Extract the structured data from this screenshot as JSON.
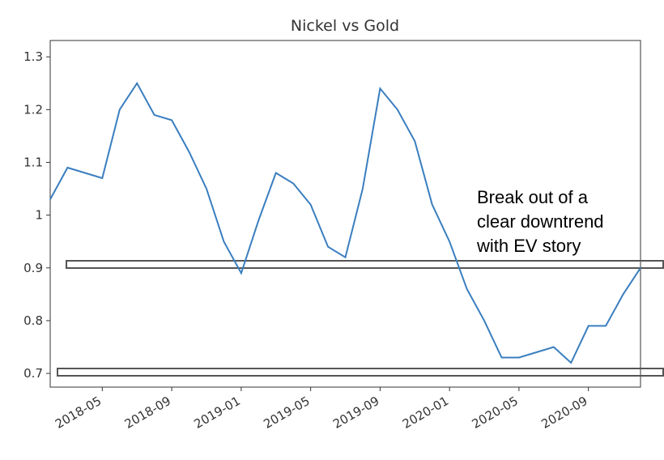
{
  "chart_data": {
    "type": "line",
    "title": "Nickel vs Gold",
    "x": [
      "2018-02",
      "2018-03",
      "2018-04",
      "2018-05",
      "2018-06",
      "2018-07",
      "2018-08",
      "2018-09",
      "2018-10",
      "2018-11",
      "2018-12",
      "2019-01",
      "2019-02",
      "2019-03",
      "2019-04",
      "2019-05",
      "2019-06",
      "2019-07",
      "2019-08",
      "2019-09",
      "2019-10",
      "2019-11",
      "2019-12",
      "2020-01",
      "2020-02",
      "2020-03",
      "2020-04",
      "2020-05",
      "2020-06",
      "2020-07",
      "2020-08",
      "2020-09",
      "2020-10",
      "2020-11",
      "2020-12"
    ],
    "series": [
      {
        "name": "Nickel vs Gold",
        "color": "#3a7ebf",
        "values": [
          1.03,
          1.09,
          1.08,
          1.07,
          1.2,
          1.25,
          1.19,
          1.18,
          1.12,
          1.05,
          0.95,
          0.89,
          0.99,
          1.08,
          1.06,
          1.02,
          0.94,
          0.92,
          1.05,
          1.24,
          1.2,
          1.14,
          1.02,
          0.95,
          0.86,
          0.8,
          0.73,
          0.73,
          0.74,
          0.75,
          0.72,
          0.79,
          0.79,
          0.85,
          0.9
        ]
      }
    ],
    "xlim": [
      "2018-02",
      "2020-12"
    ],
    "xticks": [
      "2018-05",
      "2018-09",
      "2019-01",
      "2019-05",
      "2019-09",
      "2020-01",
      "2020-05",
      "2020-09"
    ],
    "ylim": [
      0.674,
      1.331
    ],
    "yticks": [
      0.7,
      0.8,
      0.9,
      1.0,
      1.1,
      1.2,
      1.3
    ],
    "annotation": [
      "Break out of a",
      "clear downtrend",
      "with EV story"
    ]
  }
}
